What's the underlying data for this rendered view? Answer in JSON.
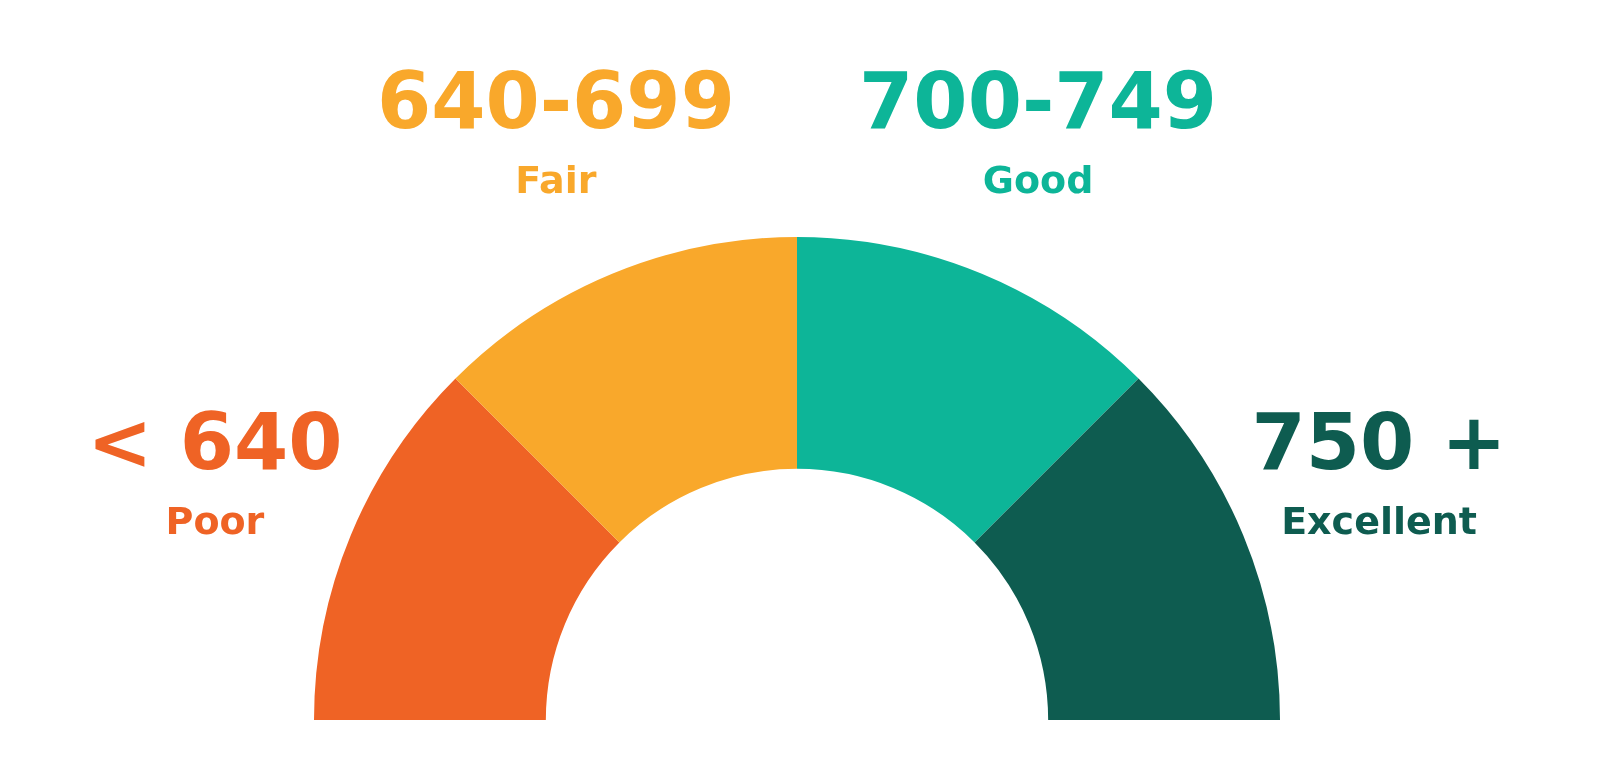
{
  "chart_data": {
    "type": "donut",
    "categories": [
      "Poor",
      "Fair",
      "Good",
      "Excellent"
    ],
    "values": [
      25,
      25,
      25,
      25
    ],
    "colors": [
      "#ef6325",
      "#f9a82b",
      "#0db598",
      "#0e5c50"
    ],
    "annotations": [
      "< 640",
      "640-699",
      "700-749",
      "750 +"
    ],
    "legend": false
  }
}
